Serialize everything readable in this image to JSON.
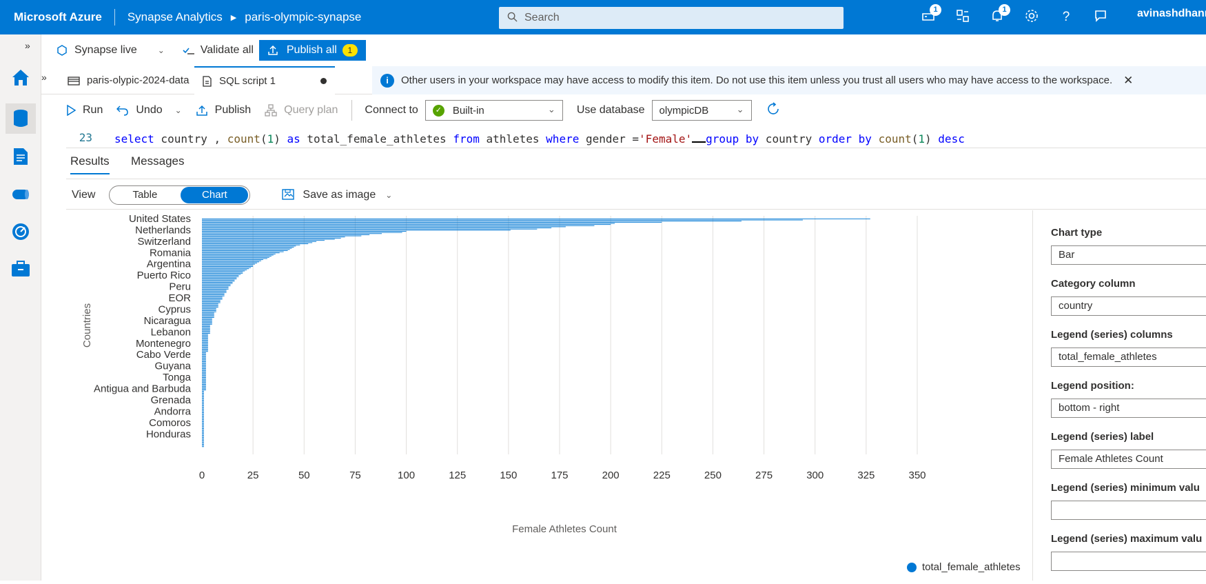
{
  "topbar": {
    "brand": "Microsoft Azure",
    "service": "Synapse Analytics",
    "workspace": "paris-olympic-synapse",
    "search_placeholder": "Search",
    "notif_badge_1": "1",
    "notif_badge_2": "1",
    "username": "avinashdhann"
  },
  "toolbar": {
    "mode": "Synapse live",
    "validate_all": "Validate all",
    "publish_all": "Publish all",
    "publish_count": "1"
  },
  "tabs": [
    {
      "label": "paris-olypic-2024-data"
    },
    {
      "label": "SQL script 1"
    }
  ],
  "info_banner": "Other users in your workspace may have access to modify this item. Do not use this item unless you trust all users who may have access to the workspace.",
  "script_toolbar": {
    "run": "Run",
    "undo": "Undo",
    "publish": "Publish",
    "query_plan": "Query plan",
    "connect_to_label": "Connect to",
    "connect_to_value": "Built-in",
    "use_database_label": "Use database",
    "use_database_value": "olympicDB"
  },
  "editor": {
    "line_number": "23",
    "tokens": {
      "t1": "select",
      "t2": " country , ",
      "t3": "count",
      "t4": "(",
      "t5": "1",
      "t6": ") ",
      "t7": "as",
      "t8": " total_female_athletes ",
      "t9": "from",
      "t10": " athletes ",
      "t11": "where",
      "t12": " gender =",
      "t13": "'Female'",
      "t14": " ",
      "t15": "group by",
      "t16": " country ",
      "t17": "order by",
      "t18": " ",
      "t19": "count",
      "t20": "(",
      "t21": "1",
      "t22": ") ",
      "t23": "desc"
    }
  },
  "results": {
    "tab_results": "Results",
    "tab_messages": "Messages",
    "view_label": "View",
    "view_table": "Table",
    "view_chart": "Chart",
    "save_as_image": "Save as image"
  },
  "chart_data": {
    "type": "bar",
    "orientation": "horizontal",
    "xlabel": "Female Athletes Count",
    "ylabel": "Countries",
    "xlim": [
      0,
      350
    ],
    "xticks": [
      0,
      25,
      50,
      75,
      100,
      125,
      150,
      175,
      200,
      225,
      250,
      275,
      300,
      325,
      350
    ],
    "grid": true,
    "legend_position": "bottom-right",
    "series": [
      {
        "name": "total_female_athletes",
        "color": "#0078d4",
        "values": [
          327,
          294,
          264,
          225,
          202,
          200,
          192,
          178,
          171,
          164,
          151,
          100,
          98,
          88,
          82,
          78,
          70,
          68,
          65,
          60,
          56,
          54,
          52,
          48,
          46,
          45,
          44,
          43,
          42,
          40,
          38,
          36,
          35,
          34,
          33,
          32,
          30,
          29,
          28,
          27,
          26,
          25,
          25,
          24,
          23,
          22,
          21,
          20,
          20,
          19,
          18,
          18,
          17,
          17,
          16,
          16,
          15,
          15,
          14,
          14,
          13,
          13,
          13,
          12,
          12,
          12,
          11,
          11,
          11,
          10,
          10,
          10,
          9,
          9,
          9,
          8,
          8,
          8,
          8,
          7,
          7,
          7,
          7,
          6,
          6,
          6,
          6,
          6,
          5,
          5,
          5,
          5,
          5,
          5,
          4,
          4,
          4,
          4,
          4,
          4,
          4,
          4,
          3,
          3,
          3,
          3,
          3,
          3,
          3,
          3,
          3,
          3,
          3,
          3,
          3,
          3,
          3,
          3,
          2,
          2,
          2,
          2,
          2,
          2,
          2,
          2,
          2,
          2,
          2,
          2,
          2,
          2,
          2,
          2,
          2,
          2,
          2,
          2,
          2,
          2,
          2,
          2,
          2,
          2,
          2,
          2,
          2,
          2,
          2,
          2,
          2,
          2,
          1,
          1,
          1,
          1,
          1,
          1,
          1,
          1,
          1,
          1,
          1,
          1,
          1,
          1,
          1,
          1,
          1,
          1,
          1,
          1,
          1,
          1,
          1,
          1,
          1,
          1,
          1,
          1,
          1,
          1,
          1,
          1,
          1,
          1,
          1,
          1,
          1,
          1,
          1,
          1,
          1,
          1,
          1,
          1,
          1,
          1,
          1,
          1,
          1,
          1
        ]
      }
    ],
    "category_tick_labels": [
      {
        "label": "United States",
        "index": 0
      },
      {
        "label": "Netherlands",
        "index": 10
      },
      {
        "label": "Switzerland",
        "index": 20
      },
      {
        "label": "Romania",
        "index": 30
      },
      {
        "label": "Argentina",
        "index": 40
      },
      {
        "label": "Puerto Rico",
        "index": 50
      },
      {
        "label": "Peru",
        "index": 60
      },
      {
        "label": "EOR",
        "index": 70
      },
      {
        "label": "Cyprus",
        "index": 80
      },
      {
        "label": "Nicaragua",
        "index": 90
      },
      {
        "label": "Lebanon",
        "index": 100
      },
      {
        "label": "Montenegro",
        "index": 110
      },
      {
        "label": "Cabo Verde",
        "index": 120
      },
      {
        "label": "Guyana",
        "index": 130
      },
      {
        "label": "Tonga",
        "index": 140
      },
      {
        "label": "Antigua and Barbuda",
        "index": 150
      },
      {
        "label": "Grenada",
        "index": 160
      },
      {
        "label": "Andorra",
        "index": 170
      },
      {
        "label": "Comoros",
        "index": 180
      },
      {
        "label": "Honduras",
        "index": 190
      }
    ]
  },
  "panel": {
    "chart_type_label": "Chart type",
    "chart_type_value": "Bar",
    "category_label": "Category column",
    "category_value": "country",
    "legend_cols_label": "Legend (series) columns",
    "legend_cols_value": "total_female_athletes",
    "legend_pos_label": "Legend position:",
    "legend_pos_value": "bottom - right",
    "legend_label_label": "Legend (series) label",
    "legend_label_value": "Female Athletes Count",
    "legend_min_label": "Legend (series) minimum valu",
    "legend_max_label": "Legend (series) maximum valu"
  },
  "legend": {
    "label": "total_female_athletes"
  }
}
